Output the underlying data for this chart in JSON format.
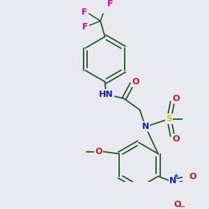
{
  "bg_color": "#e8eaf0",
  "bond_color": "#2d5a2d",
  "atom_colors": {
    "N": "#1a1acc",
    "O": "#cc1a1a",
    "S": "#cccc00",
    "F": "#cc00cc",
    "H": "#607060",
    "C": "#2d5a2d"
  },
  "font_size": 9,
  "fig_size": [
    3.0,
    3.0
  ],
  "dpi": 100
}
